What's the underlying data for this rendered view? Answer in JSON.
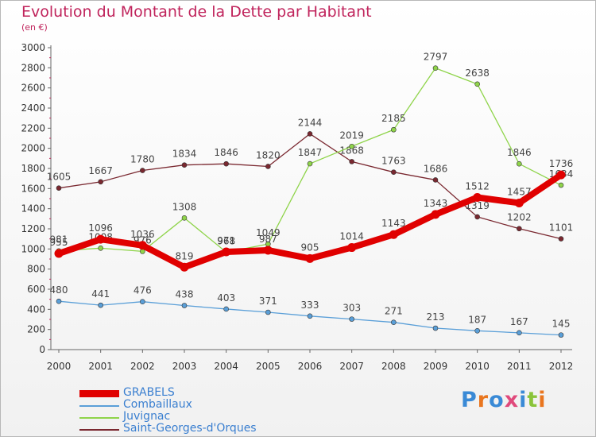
{
  "title": "Evolution du Montant de la Dette par Habitant",
  "unit": "(en €)",
  "logo": {
    "text": "Proxiti",
    "colors": [
      "#3a8ad6",
      "#e9761f",
      "#3a8ad6",
      "#e04a7c",
      "#3a8ad6",
      "#8ac43a",
      "#e9761f"
    ]
  },
  "chart_data": {
    "type": "line",
    "x": [
      "2000",
      "2001",
      "2002",
      "2003",
      "2004",
      "2005",
      "2006",
      "2007",
      "2008",
      "2009",
      "2010",
      "2011",
      "2012"
    ],
    "ylim": [
      0,
      3000
    ],
    "yticks": [
      0,
      200,
      400,
      600,
      800,
      1000,
      1200,
      1400,
      1600,
      1800,
      2000,
      2200,
      2400,
      2600,
      2800,
      3000
    ],
    "grid": false,
    "legend": "bottom-left",
    "series": [
      {
        "name": "Saint-Georges-d'Orques",
        "color": "#7a2830",
        "values": [
          1605,
          1667,
          1780,
          1834,
          1846,
          1820,
          2144,
          1868,
          1763,
          1686,
          1319,
          1202,
          1101
        ]
      },
      {
        "name": "Juvignac",
        "color": "#8fd44a",
        "values": [
          981,
          1008,
          976,
          1308,
          968,
          1049,
          1847,
          2019,
          2185,
          2797,
          2638,
          1846,
          1634
        ]
      },
      {
        "name": "Combaillaux",
        "color": "#5a9fd8",
        "values": [
          480,
          441,
          476,
          438,
          403,
          371,
          333,
          303,
          271,
          213,
          187,
          167,
          145
        ]
      },
      {
        "name": "GRABELS",
        "color": "#e00000",
        "values": [
          955,
          1096,
          1036,
          819,
          971,
          987,
          905,
          1014,
          1143,
          1343,
          1512,
          1457,
          1736
        ]
      }
    ],
    "legend_order": [
      "GRABELS",
      "Combaillaux",
      "Juvignac",
      "Saint-Georges-d'Orques"
    ]
  }
}
